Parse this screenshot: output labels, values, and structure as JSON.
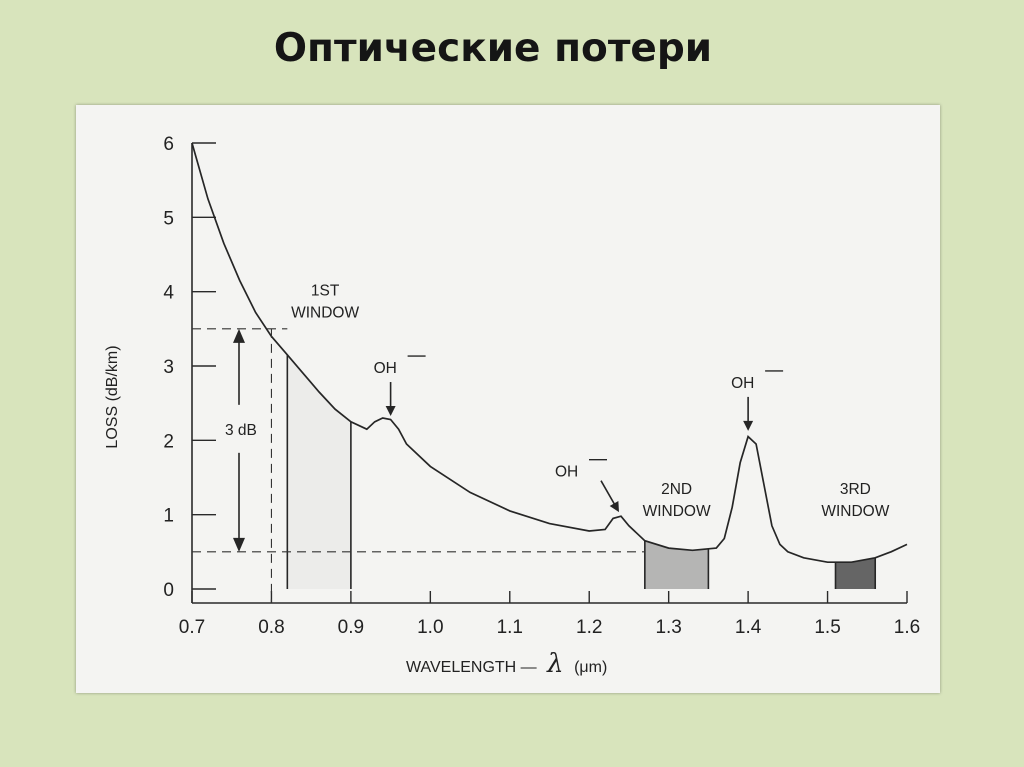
{
  "slide": {
    "title": "Оптические потери"
  },
  "chart_data": {
    "type": "line",
    "title": "",
    "xlabel_text": "WAVELENGTH —",
    "xlabel_symbol": "λ",
    "xlabel_unit": "(μm)",
    "ylabel": "LOSS (dB/km)",
    "xlim": [
      0.7,
      1.6
    ],
    "ylim": [
      0,
      6
    ],
    "x_ticks": [
      0.7,
      0.8,
      0.9,
      1.0,
      1.1,
      1.2,
      1.3,
      1.4,
      1.5,
      1.6
    ],
    "x_tick_labels": [
      "0.7",
      "0.8",
      "0.9",
      "1.0",
      "1.1",
      "1.2",
      "1.3",
      "1.4",
      "1.5",
      "1.6"
    ],
    "y_ticks": [
      0,
      1,
      2,
      3,
      4,
      5,
      6
    ],
    "y_tick_labels": [
      "0",
      "1",
      "2",
      "3",
      "4",
      "5",
      "6"
    ],
    "grid": false,
    "series": [
      {
        "x": [
          0.7,
          0.72,
          0.74,
          0.76,
          0.78,
          0.8,
          0.82,
          0.84,
          0.86,
          0.88,
          0.9,
          0.92,
          0.93,
          0.94,
          0.95,
          0.96,
          0.97,
          1.0,
          1.05,
          1.1,
          1.15,
          1.2,
          1.22,
          1.23,
          1.24,
          1.25,
          1.27,
          1.3,
          1.33,
          1.36,
          1.37,
          1.38,
          1.39,
          1.4,
          1.41,
          1.42,
          1.43,
          1.44,
          1.45,
          1.47,
          1.5,
          1.53,
          1.56,
          1.58,
          1.6
        ],
        "y": [
          6.0,
          5.25,
          4.65,
          4.15,
          3.72,
          3.4,
          3.15,
          2.9,
          2.65,
          2.42,
          2.25,
          2.15,
          2.25,
          2.3,
          2.28,
          2.15,
          1.95,
          1.65,
          1.3,
          1.05,
          0.88,
          0.78,
          0.8,
          0.95,
          0.98,
          0.85,
          0.65,
          0.55,
          0.52,
          0.55,
          0.68,
          1.1,
          1.7,
          2.05,
          1.95,
          1.4,
          0.85,
          0.6,
          0.5,
          0.42,
          0.36,
          0.36,
          0.42,
          0.5,
          0.6
        ]
      }
    ],
    "windows": [
      {
        "label_line1": "1ST",
        "label_line2": "WINDOW",
        "x_start": 0.82,
        "x_end": 0.9,
        "shade": "#dcdcdc",
        "shade_opacity": 0.35
      },
      {
        "label_line1": "2ND",
        "label_line2": "WINDOW",
        "x_start": 1.27,
        "x_end": 1.35,
        "shade": "#9a9a9a",
        "shade_opacity": 0.7
      },
      {
        "label_line1": "3RD",
        "label_line2": "WINDOW",
        "x_start": 1.51,
        "x_end": 1.56,
        "shade": "#555555",
        "shade_opacity": 0.9
      }
    ],
    "annotations": [
      {
        "name": "oh-peak-1",
        "text": "OH",
        "arrow_to_x": 0.95,
        "arrow_to_y": 2.3
      },
      {
        "name": "oh-peak-2",
        "text": "OH",
        "arrow_to_x": 1.24,
        "arrow_to_y": 1.0
      },
      {
        "name": "oh-peak-3",
        "text": "OH",
        "arrow_to_x": 1.4,
        "arrow_to_y": 2.1
      }
    ],
    "bandwidth_marker": {
      "label": "3 dB",
      "upper_y": 3.5,
      "lower_y": 0.5,
      "x": 0.8
    }
  },
  "colors": {
    "slide_background": "#d8e4bc",
    "figure_background": "#f4f4f2",
    "ink": "#262626"
  }
}
